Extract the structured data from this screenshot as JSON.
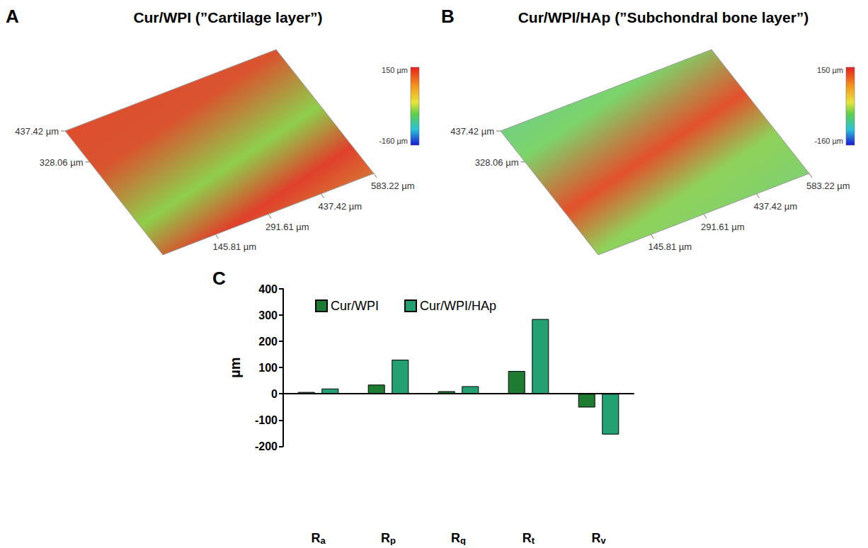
{
  "chart_data": [
    {
      "type": "surface",
      "letter": "A",
      "title": "Cur/WPI (”Cartilage layer”)",
      "xticks": [
        {
          "value": 145.81,
          "label": "145.81 µm"
        },
        {
          "value": 291.61,
          "label": "291.61 µm"
        },
        {
          "value": 437.42,
          "label": "437.42 µm"
        },
        {
          "value": 583.22,
          "label": "583.22 µm"
        }
      ],
      "yticks": [
        {
          "value": 328.06,
          "label": "328.06 µm"
        },
        {
          "value": 437.42,
          "label": "437.42 µm"
        }
      ],
      "zlim": [
        -160,
        150
      ],
      "zticks": [
        {
          "value": -160,
          "label": "-160 µm"
        },
        {
          "value": 150,
          "label": "150 µm"
        }
      ]
    },
    {
      "type": "surface",
      "letter": "B",
      "title": "Cur/WPI/HAp (”Subchondral bone layer”)",
      "xticks": [
        {
          "value": 145.81,
          "label": "145.81 µm"
        },
        {
          "value": 291.61,
          "label": "291.61 µm"
        },
        {
          "value": 437.42,
          "label": "437.42 µm"
        },
        {
          "value": 583.22,
          "label": "583.22 µm"
        }
      ],
      "yticks": [
        {
          "value": 328.06,
          "label": "328.06 µm"
        },
        {
          "value": 437.42,
          "label": "437.42 µm"
        }
      ],
      "zlim": [
        -160,
        150
      ],
      "zticks": [
        {
          "value": -160,
          "label": "-160 µm"
        },
        {
          "value": 150,
          "label": "150 µm"
        }
      ]
    },
    {
      "type": "bar",
      "letter": "C",
      "ylabel": "µm",
      "categories": [
        "Ra",
        "Rp",
        "Rq",
        "Rt",
        "Rv"
      ],
      "series": [
        {
          "name": "Cur/WPI",
          "color": "#1e7b32",
          "values": [
            7,
            35,
            10,
            87,
            -52
          ]
        },
        {
          "name": "Cur/WPI/HAp",
          "color": "#23a173",
          "values": [
            20,
            130,
            29,
            285,
            -155
          ]
        }
      ],
      "ylim": [
        -200,
        400
      ],
      "yticks": [
        -200,
        -100,
        0,
        100,
        200,
        300,
        400
      ],
      "grid": false,
      "legend": "upper left"
    }
  ]
}
